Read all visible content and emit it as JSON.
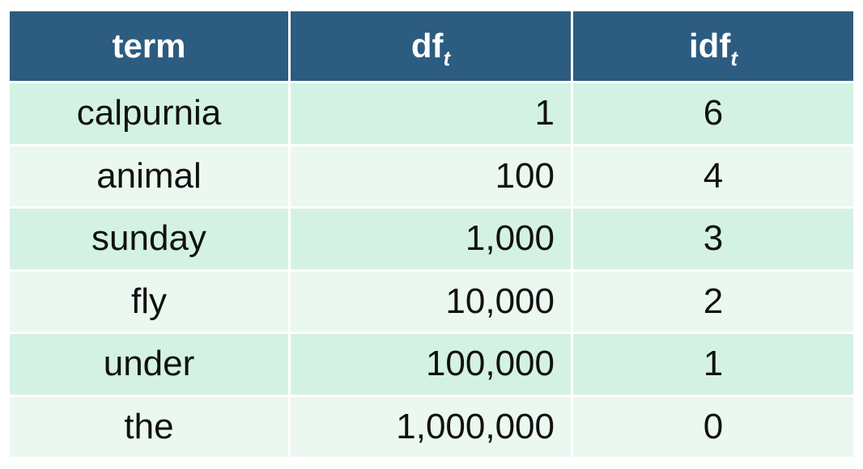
{
  "table": {
    "headers": {
      "term": "term",
      "df_base": "df",
      "df_sub": "t",
      "idf_base": "idf",
      "idf_sub": "t"
    },
    "rows": [
      {
        "term": "calpurnia",
        "df": "1",
        "idf": "6"
      },
      {
        "term": "animal",
        "df": "100",
        "idf": "4"
      },
      {
        "term": "sunday",
        "df": "1,000",
        "idf": "3"
      },
      {
        "term": "fly",
        "df": "10,000",
        "idf": "2"
      },
      {
        "term": "under",
        "df": "100,000",
        "idf": "1"
      },
      {
        "term": "the",
        "df": "1,000,000",
        "idf": "0"
      }
    ]
  },
  "colors": {
    "header_bg": "#2c5c80",
    "row_odd_bg": "#d4f2e4",
    "row_even_bg": "#ebf8f0"
  }
}
